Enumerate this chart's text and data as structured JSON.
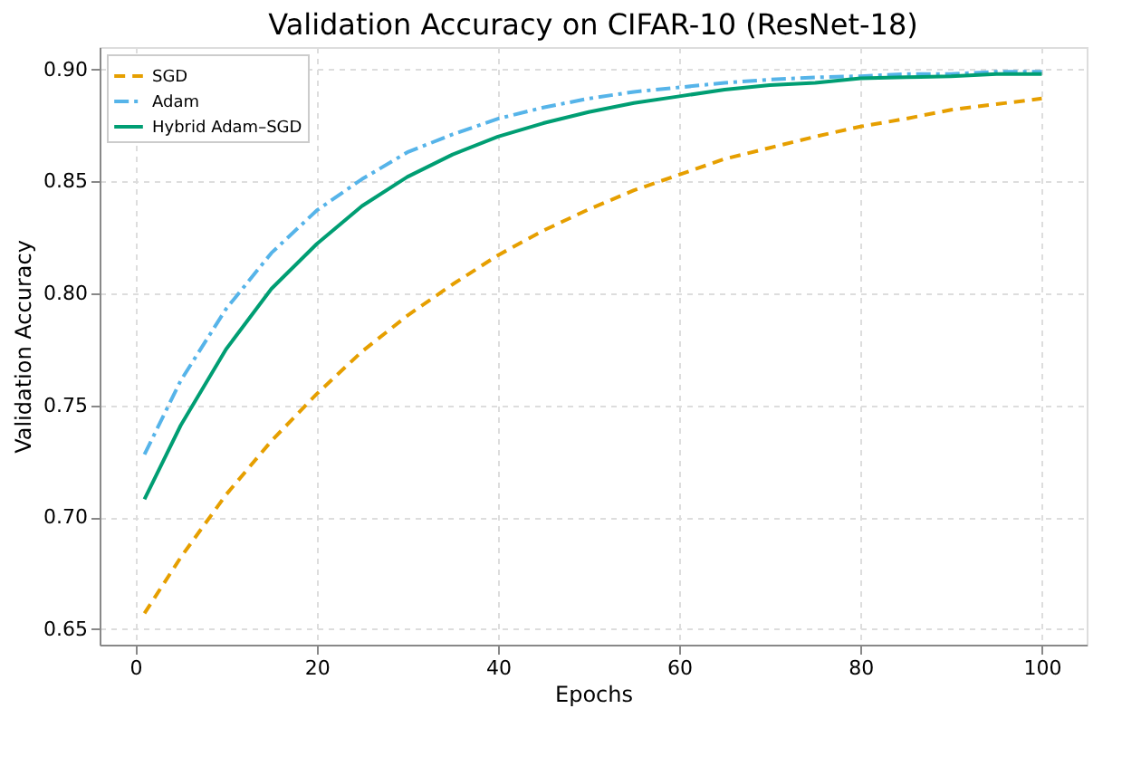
{
  "chart_data": {
    "type": "line",
    "title": "Validation Accuracy on CIFAR-10 (ResNet-18)",
    "xlabel": "Epochs",
    "ylabel": "Validation Accuracy",
    "x": [
      1,
      5,
      10,
      15,
      20,
      25,
      30,
      35,
      40,
      45,
      50,
      55,
      60,
      65,
      70,
      75,
      80,
      85,
      90,
      95,
      100
    ],
    "series": [
      {
        "name": "SGD",
        "color": "#e69f00",
        "line_style": "dashed",
        "values": [
          0.657,
          0.682,
          0.71,
          0.734,
          0.755,
          0.774,
          0.79,
          0.804,
          0.817,
          0.828,
          0.8375,
          0.846,
          0.853,
          0.86,
          0.865,
          0.87,
          0.8745,
          0.878,
          0.882,
          0.8845,
          0.887
        ]
      },
      {
        "name": "Adam",
        "color": "#56b4e9",
        "line_style": "dashdot",
        "values": [
          0.728,
          0.761,
          0.793,
          0.818,
          0.837,
          0.851,
          0.863,
          0.871,
          0.878,
          0.883,
          0.887,
          0.89,
          0.892,
          0.894,
          0.8955,
          0.8965,
          0.897,
          0.898,
          0.898,
          0.899,
          0.899
        ]
      },
      {
        "name": "Hybrid Adam–SGD",
        "color": "#009e73",
        "line_style": "solid",
        "values": [
          0.708,
          0.741,
          0.775,
          0.802,
          0.822,
          0.839,
          0.852,
          0.862,
          0.87,
          0.876,
          0.881,
          0.885,
          0.888,
          0.891,
          0.893,
          0.894,
          0.896,
          0.8965,
          0.897,
          0.898,
          0.898
        ]
      }
    ],
    "xlim": [
      -3.95,
      104.95
    ],
    "xticks": [
      0,
      20,
      40,
      60,
      80,
      100
    ],
    "ylim": [
      0.643,
      0.91
    ],
    "yticks": [
      0.65,
      {
        "value": 0.7,
        "label": "0.70"
      },
      0.75,
      {
        "value": 0.8,
        "label": "0.80"
      },
      0.85,
      {
        "value": 0.9,
        "label": "0.90"
      }
    ],
    "grid": true,
    "legend": "top left"
  }
}
